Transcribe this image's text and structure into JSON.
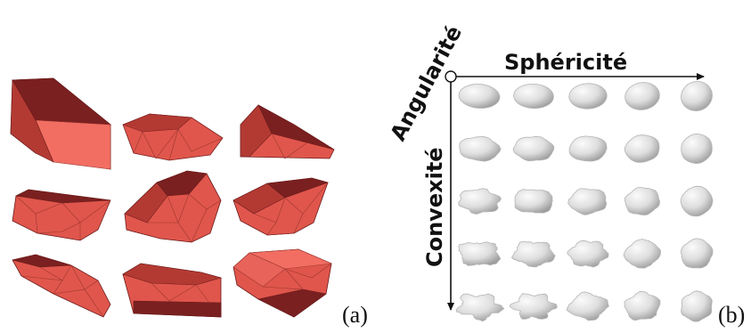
{
  "panels": {
    "a": {
      "label": "(a)"
    },
    "b": {
      "label": "(b)"
    }
  },
  "axes": {
    "horizontal": "Sphéricité",
    "diagonal": "Angularité",
    "vertical": "Convexité"
  },
  "colors": {
    "polyhedron_light": "#f26e62",
    "polyhedron_mid": "#e0564c",
    "polyhedron_dark": "#b33a33",
    "polyhedron_darkest": "#7a2020",
    "particle_light": "#f4f4f4",
    "particle_shade": "#a9a9a9",
    "axis": "#111111"
  },
  "grid": {
    "rows": 5,
    "cols": 5
  }
}
